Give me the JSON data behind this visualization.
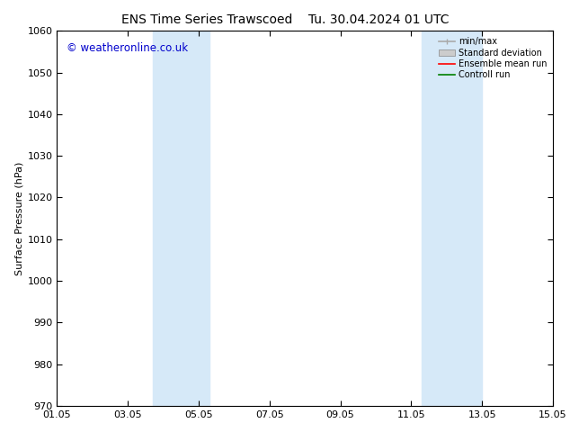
{
  "title_left": "ENS Time Series Trawscoed",
  "title_right": "Tu. 30.04.2024 01 UTC",
  "ylabel": "Surface Pressure (hPa)",
  "ylim": [
    970,
    1060
  ],
  "yticks": [
    970,
    980,
    990,
    1000,
    1010,
    1020,
    1030,
    1040,
    1050,
    1060
  ],
  "xtick_labels": [
    "01.05",
    "03.05",
    "05.05",
    "07.05",
    "09.05",
    "11.05",
    "13.05",
    "15.05"
  ],
  "xtick_days": [
    1,
    3,
    5,
    7,
    9,
    11,
    13,
    15
  ],
  "xstart_day": 1,
  "xend_day": 15,
  "blue_bands": [
    {
      "start": 3.7,
      "end": 5.3
    },
    {
      "start": 11.3,
      "end": 13.0
    }
  ],
  "band_color": "#d6e9f8",
  "watermark": "© weatheronline.co.uk",
  "watermark_color": "#0000cc",
  "legend_labels": [
    "min/max",
    "Standard deviation",
    "Ensemble mean run",
    "Controll run"
  ],
  "legend_colors": [
    "#aaaaaa",
    "#cccccc",
    "#ff0000",
    "#008000"
  ],
  "background_color": "#ffffff",
  "title_fontsize": 10,
  "axis_label_fontsize": 8,
  "tick_fontsize": 8,
  "watermark_fontsize": 8.5
}
